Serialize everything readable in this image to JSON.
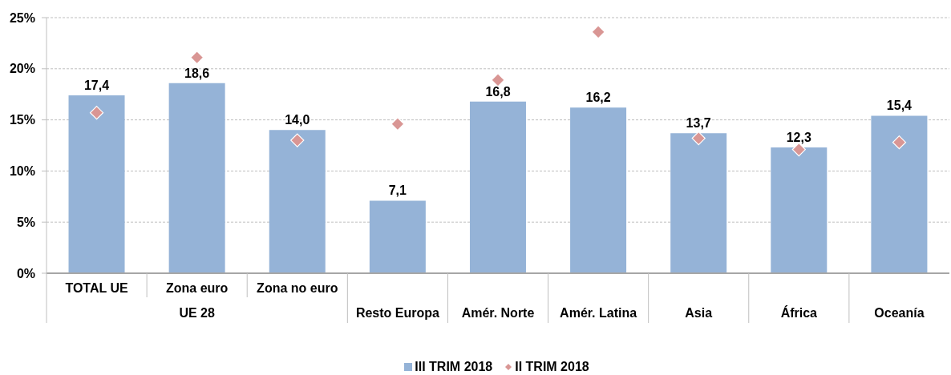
{
  "chart_data": {
    "type": "bar",
    "categories": [
      "TOTAL UE",
      "Zona euro",
      "Zona no euro",
      "Resto Europa",
      "Amér. Norte",
      "Amér. Latina",
      "Asia",
      "África",
      "Oceanía"
    ],
    "series": [
      {
        "name": "III TRIM 2018",
        "color": "#95b3d7",
        "values": [
          17.4,
          18.6,
          14.0,
          7.1,
          16.8,
          16.2,
          13.7,
          12.3,
          15.4
        ],
        "value_labels": [
          "17,4",
          "18,6",
          "14,0",
          "7,1",
          "16,8",
          "16,2",
          "13,7",
          "12,3",
          "15,4"
        ]
      },
      {
        "name": "II TRIM 2018",
        "type": "scatter",
        "color": "#d99694",
        "values": [
          15.7,
          21.1,
          13.0,
          14.6,
          18.9,
          23.6,
          13.2,
          12.1,
          12.8
        ]
      }
    ],
    "ylim": [
      0,
      25
    ],
    "yticks": [
      {
        "value": 0,
        "label": "0%"
      },
      {
        "value": 5,
        "label": "5%"
      },
      {
        "value": 10,
        "label": "10%"
      },
      {
        "value": 15,
        "label": "15%"
      },
      {
        "value": 20,
        "label": "20%"
      },
      {
        "value": 25,
        "label": "25%"
      }
    ],
    "grid": "y",
    "legend": "bottom",
    "marker": "diamond",
    "annotations": [
      "UE 28"
    ]
  }
}
